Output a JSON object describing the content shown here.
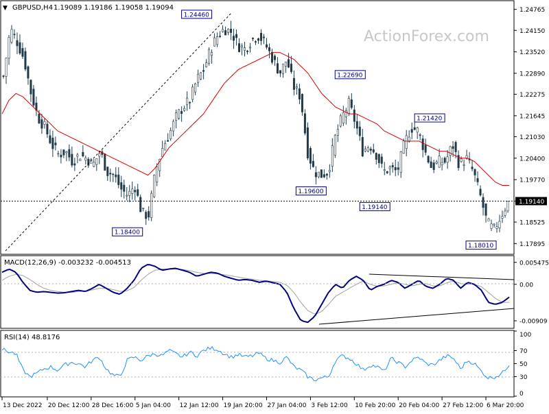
{
  "header": {
    "symbol": "GBPUSD,H4",
    "ohlc": "1.19089 1.19186 1.19058 1.19094"
  },
  "watermark": "ActionForex.com",
  "chart_data": [
    {
      "type": "candlestick",
      "panel": "price",
      "ylim": [
        1.176,
        1.25
      ],
      "price_ticks": [
        "1.24765",
        "1.24150",
        "1.23520",
        "1.22890",
        "1.22275",
        "1.21645",
        "1.21030",
        "1.20400",
        "1.19770",
        "1.19140",
        "1.18525",
        "1.17895"
      ],
      "price_tick_values": [
        1.24765,
        1.2415,
        1.2352,
        1.2289,
        1.22275,
        1.21645,
        1.2103,
        1.204,
        1.1977,
        1.1914,
        1.18525,
        1.17895
      ],
      "current_price": {
        "label": "1.19140",
        "value": 1.1914
      },
      "swing_labels": [
        {
          "text": "1.24460",
          "value": 1.2446,
          "bar": 308
        },
        {
          "text": "1.22690",
          "value": 1.2269,
          "bar": 532
        },
        {
          "text": "1.21420",
          "value": 1.2142,
          "bar": 648
        },
        {
          "text": "1.19600",
          "value": 1.196,
          "bar": 475
        },
        {
          "text": "1.19140",
          "value": 1.1914,
          "bar": 568
        },
        {
          "text": "1.18400",
          "value": 1.184,
          "bar": 207
        },
        {
          "text": "1.18010",
          "value": 1.1801,
          "bar": 723
        }
      ],
      "close_series": [
        1.228,
        1.242,
        1.238,
        1.233,
        1.223,
        1.216,
        1.213,
        1.208,
        1.205,
        1.206,
        1.203,
        1.205,
        1.204,
        1.202,
        1.206,
        1.2,
        1.199,
        1.195,
        1.193,
        1.196,
        1.188,
        1.187,
        1.2,
        1.207,
        1.211,
        1.216,
        1.219,
        1.221,
        1.227,
        1.23,
        1.236,
        1.24,
        1.242,
        1.241,
        1.237,
        1.236,
        1.239,
        1.24,
        1.237,
        1.233,
        1.229,
        1.233,
        1.225,
        1.222,
        1.206,
        1.2,
        1.199,
        1.2,
        1.21,
        1.216,
        1.22,
        1.214,
        1.206,
        1.208,
        1.205,
        1.2,
        1.201,
        1.2,
        1.208,
        1.213,
        1.212,
        1.206,
        1.201,
        1.203,
        1.203,
        1.208,
        1.202,
        1.204,
        1.2,
        1.193,
        1.185,
        1.183,
        1.187,
        1.191
      ],
      "ma_series": [
        1.217,
        1.221,
        1.223,
        1.222,
        1.22,
        1.218,
        1.216,
        1.214,
        1.212,
        1.211,
        1.21,
        1.209,
        1.208,
        1.207,
        1.206,
        1.205,
        1.204,
        1.203,
        1.202,
        1.201,
        1.2,
        1.199,
        1.201,
        1.204,
        1.207,
        1.209,
        1.211,
        1.213,
        1.215,
        1.217,
        1.22,
        1.223,
        1.226,
        1.228,
        1.23,
        1.231,
        1.232,
        1.233,
        1.234,
        1.235,
        1.235,
        1.234,
        1.233,
        1.231,
        1.229,
        1.226,
        1.223,
        1.221,
        1.219,
        1.218,
        1.217,
        1.217,
        1.216,
        1.215,
        1.214,
        1.212,
        1.211,
        1.21,
        1.209,
        1.209,
        1.209,
        1.208,
        1.207,
        1.206,
        1.206,
        1.205,
        1.204,
        1.204,
        1.203,
        1.201,
        1.199,
        1.197,
        1.196,
        1.196
      ]
    },
    {
      "type": "line",
      "panel": "macd",
      "label": "MACD(12,26,9) -0.003232 -0.004513",
      "ylim": [
        -0.0108,
        0.0068
      ],
      "ticks": [
        "0.005475",
        "0.00",
        "-0.00909"
      ],
      "tick_values": [
        0.005475,
        0.0,
        -0.00909
      ],
      "macd_series": [
        0.003,
        0.0038,
        0.003,
        0.0005,
        -0.0015,
        -0.002,
        -0.0018,
        -0.002,
        -0.0022,
        -0.0021,
        -0.0018,
        -0.0015,
        -0.0018,
        -0.001,
        0.0,
        -0.001,
        -0.002,
        -0.0025,
        -0.001,
        0.001,
        0.004,
        0.005,
        0.0045,
        0.0035,
        0.0038,
        0.004,
        0.0035,
        0.003,
        0.002,
        0.0025,
        0.003,
        0.0028,
        0.002,
        0.0015,
        0.001,
        0.0012,
        0.001,
        0.0005,
        0.0008,
        0.0004,
        0.0,
        -0.002,
        -0.006,
        -0.009,
        -0.0095,
        -0.008,
        -0.005,
        -0.002,
        0.0,
        -0.001,
        0.001,
        0.002,
        0.001,
        -0.0015,
        -0.0005,
        0.0,
        0.001,
        0.0005,
        -0.001,
        0.0,
        0.001,
        -0.0005,
        -0.001,
        0.0,
        0.0015,
        0.001,
        -0.001,
        0.0005,
        0.0,
        -0.0015,
        -0.0045,
        -0.005,
        -0.0045,
        -0.0032
      ],
      "signal_series": [
        0.001,
        0.002,
        0.0025,
        0.0022,
        0.0012,
        0.0,
        -0.001,
        -0.0015,
        -0.0018,
        -0.002,
        -0.002,
        -0.0018,
        -0.0017,
        -0.0014,
        -0.001,
        -0.001,
        -0.0013,
        -0.0018,
        -0.0016,
        -0.0008,
        0.001,
        0.0025,
        0.0035,
        0.0038,
        0.0038,
        0.0038,
        0.0037,
        0.0034,
        0.003,
        0.0027,
        0.0027,
        0.0026,
        0.0024,
        0.0021,
        0.0018,
        0.0015,
        0.0013,
        0.001,
        0.0009,
        0.0007,
        0.0005,
        -0.0002,
        -0.002,
        -0.0045,
        -0.0065,
        -0.0075,
        -0.0068,
        -0.005,
        -0.003,
        -0.002,
        -0.001,
        0.0,
        0.0008,
        0.0,
        -0.0005,
        -0.0004,
        0.0,
        0.0004,
        0.0,
        -0.0004,
        0.0,
        0.0002,
        -0.0004,
        -0.0004,
        0.0004,
        0.0008,
        0.0002,
        0.0,
        0.0,
        -0.0006,
        -0.002,
        -0.0035,
        -0.0045,
        -0.0045
      ]
    },
    {
      "type": "line",
      "panel": "rsi",
      "label": "RSI(14) 48.8176",
      "ylim": [
        0,
        100
      ],
      "ticks": [
        "100",
        "70",
        "50",
        "30",
        "0"
      ],
      "tick_values": [
        100,
        70,
        50,
        30,
        0
      ],
      "rsi_series": [
        72,
        68,
        65,
        40,
        30,
        35,
        42,
        45,
        40,
        48,
        52,
        50,
        45,
        55,
        60,
        42,
        32,
        30,
        55,
        60,
        55,
        62,
        65,
        62,
        70,
        65,
        60,
        68,
        62,
        70,
        74,
        72,
        65,
        60,
        64,
        60,
        62,
        66,
        58,
        55,
        52,
        60,
        45,
        40,
        30,
        25,
        28,
        30,
        55,
        62,
        58,
        50,
        40,
        48,
        45,
        38,
        58,
        52,
        45,
        55,
        60,
        50,
        48,
        55,
        62,
        58,
        42,
        55,
        50,
        38,
        28,
        30,
        35,
        49
      ]
    }
  ],
  "time_labels": [
    {
      "text": "13 Dec 2022",
      "bar": 0
    },
    {
      "text": "20 Dec 12:00",
      "bar": 66
    },
    {
      "text": "28 Dec 16:00",
      "bar": 130
    },
    {
      "text": "5 Jan 04:00",
      "bar": 194
    },
    {
      "text": "12 Jan 12:00",
      "bar": 258
    },
    {
      "text": "19 Jan 20:00",
      "bar": 322
    },
    {
      "text": "27 Jan 04:00",
      "bar": 386
    },
    {
      "text": "3 Feb 12:00",
      "bar": 450
    },
    {
      "text": "10 Feb 20:00",
      "bar": 514
    },
    {
      "text": "20 Feb 04:00",
      "bar": 578
    },
    {
      "text": "27 Feb 12:00",
      "bar": 642
    },
    {
      "text": "6 Mar 20:00",
      "bar": 706
    }
  ]
}
